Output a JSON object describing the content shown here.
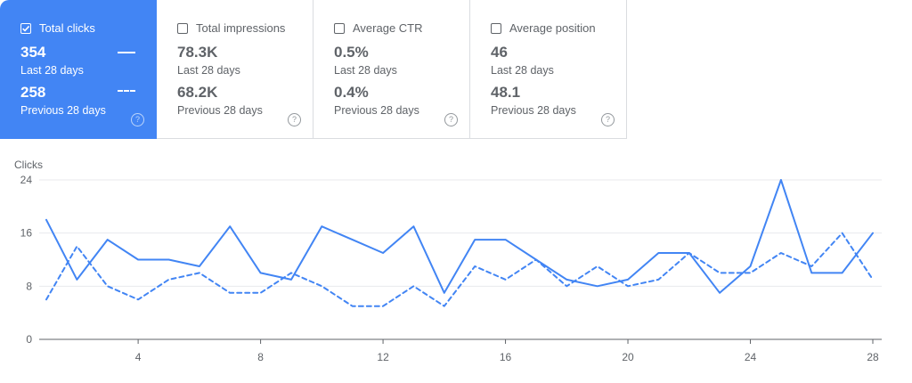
{
  "cards": [
    {
      "title": "Total clicks",
      "checked": true,
      "current_value": "354",
      "current_label": "Last 28 days",
      "previous_value": "258",
      "previous_label": "Previous 28 days",
      "help_glyph": "?"
    },
    {
      "title": "Total impressions",
      "checked": false,
      "current_value": "78.3K",
      "current_label": "Last 28 days",
      "previous_value": "68.2K",
      "previous_label": "Previous 28 days",
      "help_glyph": "?"
    },
    {
      "title": "Average CTR",
      "checked": false,
      "current_value": "0.5%",
      "current_label": "Last 28 days",
      "previous_value": "0.4%",
      "previous_label": "Previous 28 days",
      "help_glyph": "?"
    },
    {
      "title": "Average position",
      "checked": false,
      "current_value": "46",
      "current_label": "Last 28 days",
      "previous_value": "48.1",
      "previous_label": "Previous 28 days",
      "help_glyph": "?"
    }
  ],
  "colors": {
    "accent": "#4285f4",
    "text": "#5f6368",
    "grid": "#e8eaed",
    "axis": "#5f6368"
  },
  "icons": {
    "checkbox": "checkbox-icon",
    "help": "help-circle-icon"
  },
  "chart_data": {
    "type": "line",
    "ylabel": "Clicks",
    "ylim": [
      0,
      24
    ],
    "yticks": [
      0,
      8,
      16,
      24
    ],
    "xlim": [
      1,
      28
    ],
    "xticks": [
      4,
      8,
      12,
      16,
      20,
      24,
      28
    ],
    "grid": true,
    "x": [
      1,
      2,
      3,
      4,
      5,
      6,
      7,
      8,
      9,
      10,
      11,
      12,
      13,
      14,
      15,
      16,
      17,
      18,
      19,
      20,
      21,
      22,
      23,
      24,
      25,
      26,
      27,
      28
    ],
    "series": [
      {
        "style": "solid",
        "values": [
          18,
          9,
          15,
          12,
          12,
          11,
          17,
          10,
          9,
          17,
          15,
          13,
          17,
          7,
          15,
          15,
          12,
          9,
          8,
          9,
          13,
          13,
          7,
          11,
          24,
          10,
          10,
          16
        ]
      },
      {
        "style": "dashed",
        "values": [
          6,
          14,
          8,
          6,
          9,
          10,
          7,
          7,
          10,
          8,
          5,
          5,
          8,
          5,
          11,
          9,
          12,
          8,
          11,
          8,
          9,
          13,
          10,
          10,
          13,
          11,
          16,
          9
        ]
      }
    ]
  }
}
